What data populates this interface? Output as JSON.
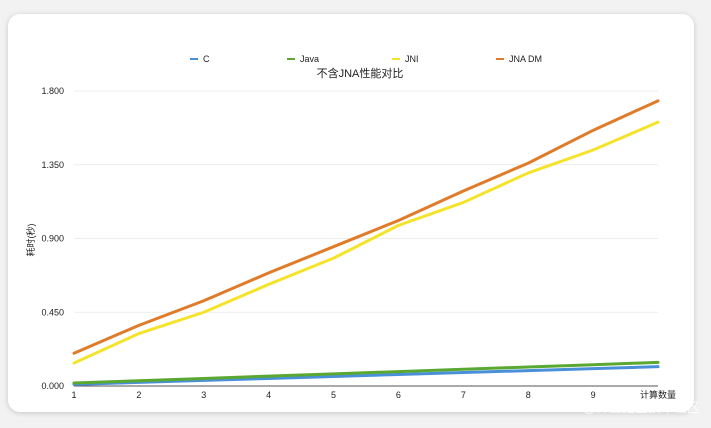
{
  "chart_data": {
    "type": "line",
    "title": "不含JNA性能对比",
    "xlabel": "计算数量",
    "ylabel": "耗时(秒)",
    "x": [
      1,
      2,
      3,
      4,
      5,
      6,
      7,
      8,
      9,
      10
    ],
    "x_tick_labels": [
      "1",
      "2",
      "3",
      "4",
      "5",
      "6",
      "7",
      "8",
      "9"
    ],
    "ylim": [
      0,
      1.8
    ],
    "y_ticks": [
      0,
      0.45,
      0.9,
      1.35,
      1.8
    ],
    "y_tick_labels": [
      "0.000",
      "0.450",
      "0.900",
      "1.350",
      "1.800"
    ],
    "grid": true,
    "legend_position": "top",
    "series": [
      {
        "name": "C",
        "color": "#4a90d9",
        "values": [
          0.01,
          0.022,
          0.034,
          0.046,
          0.058,
          0.07,
          0.082,
          0.094,
          0.106,
          0.118
        ]
      },
      {
        "name": "Java",
        "color": "#5aa832",
        "values": [
          0.018,
          0.032,
          0.046,
          0.06,
          0.074,
          0.088,
          0.102,
          0.116,
          0.13,
          0.144
        ]
      },
      {
        "name": "JNI",
        "color": "#f5e32a",
        "values": [
          0.14,
          0.32,
          0.45,
          0.62,
          0.78,
          0.98,
          1.12,
          1.3,
          1.44,
          1.61
        ]
      },
      {
        "name": "JNA DM",
        "color": "#e07b2a",
        "values": [
          0.2,
          0.37,
          0.52,
          0.69,
          0.85,
          1.01,
          1.19,
          1.36,
          1.56,
          1.74
        ]
      }
    ]
  },
  "watermark": "@稀土掘金技术社区"
}
